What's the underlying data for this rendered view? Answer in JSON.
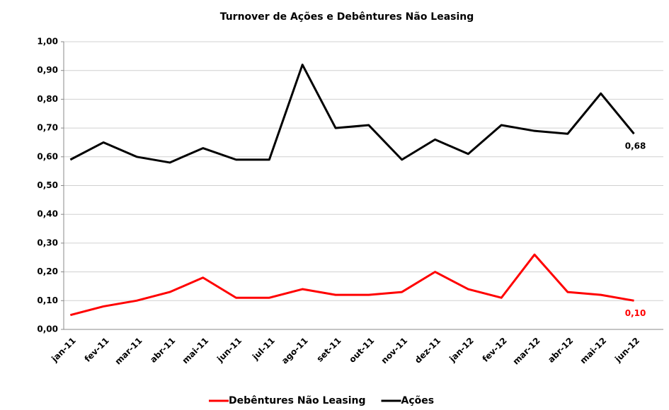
{
  "chart_data": {
    "type": "line",
    "title": "Turnover de Ações e Debêntures  Não Leasing",
    "categories": [
      "jan-11",
      "fev-11",
      "mar-11",
      "abr-11",
      "mai-11",
      "jun-11",
      "jul-11",
      "ago-11",
      "set-11",
      "out-11",
      "nov-11",
      "dez-11",
      "jan-12",
      "fev-12",
      "mar-12",
      "abr-12",
      "mai-12",
      "jun-12"
    ],
    "series": [
      {
        "name": "Debêntures Não Leasing",
        "color": "#ff0000",
        "values": [
          0.05,
          0.08,
          0.1,
          0.13,
          0.18,
          0.11,
          0.11,
          0.14,
          0.12,
          0.12,
          0.13,
          0.2,
          0.14,
          0.11,
          0.26,
          0.13,
          0.12,
          0.1
        ],
        "value_labels": [
          null,
          null,
          null,
          null,
          null,
          null,
          null,
          null,
          null,
          null,
          null,
          null,
          null,
          null,
          null,
          null,
          null,
          "0,10"
        ]
      },
      {
        "name": "Ações",
        "color": "#000000",
        "values": [
          0.59,
          0.65,
          0.6,
          0.58,
          0.63,
          0.59,
          0.59,
          0.92,
          0.7,
          0.71,
          0.59,
          0.66,
          0.61,
          0.71,
          0.69,
          0.68,
          0.82,
          0.68
        ],
        "value_labels": [
          null,
          null,
          null,
          null,
          null,
          null,
          null,
          null,
          null,
          null,
          null,
          null,
          null,
          null,
          null,
          null,
          null,
          "0,68"
        ]
      }
    ],
    "ylim": [
      0,
      1
    ],
    "yticks": [
      {
        "value": 0,
        "label": "0,00"
      },
      {
        "value": 0.1,
        "label": "0,10"
      },
      {
        "value": 0.2,
        "label": "0,20"
      },
      {
        "value": 0.3,
        "label": "0,30"
      },
      {
        "value": 0.4,
        "label": "0,40"
      },
      {
        "value": 0.5,
        "label": "0,50"
      },
      {
        "value": 0.6,
        "label": "0,60"
      },
      {
        "value": 0.7,
        "label": "0,70"
      },
      {
        "value": 0.8,
        "label": "0,80"
      },
      {
        "value": 0.9,
        "label": "0,90"
      },
      {
        "value": 1,
        "label": "1,00"
      }
    ],
    "grid": true,
    "legend": "bottom"
  }
}
